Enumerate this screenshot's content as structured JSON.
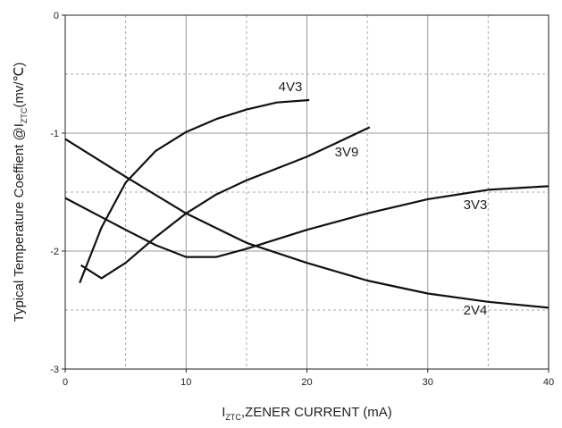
{
  "chart_data": {
    "type": "line",
    "xlabel": [
      "I",
      "ZTC",
      ",ZENER CURRENT (mA)"
    ],
    "ylabel": [
      "Typical Temperature Coeffient @I",
      "ZTC",
      "(mv/℃)"
    ],
    "xlim": [
      0,
      40
    ],
    "ylim": [
      -3,
      0
    ],
    "xticks": [
      0,
      10,
      20,
      30,
      40
    ],
    "yticks": [
      0,
      -1,
      -2,
      -3
    ],
    "xminor": [
      5,
      15,
      25,
      35
    ],
    "yminor": [
      -0.5,
      -1.5,
      -2.5
    ],
    "grid": true,
    "series": [
      {
        "name": "4V3",
        "color": "#111111",
        "x": [
          1.2,
          3,
          5,
          7.5,
          10,
          12.5,
          15,
          17.5,
          20.2
        ],
        "values": [
          -2.27,
          -1.8,
          -1.42,
          -1.15,
          -0.99,
          -0.88,
          -0.8,
          -0.74,
          -0.72
        ]
      },
      {
        "name": "3V9",
        "color": "#111111",
        "x": [
          1.3,
          3,
          5,
          7.5,
          10,
          12.5,
          15,
          17.5,
          20,
          22.5,
          25.2
        ],
        "values": [
          -2.12,
          -2.23,
          -2.1,
          -1.88,
          -1.68,
          -1.52,
          -1.4,
          -1.3,
          -1.2,
          -1.08,
          -0.95
        ]
      },
      {
        "name": "3V3",
        "color": "#111111",
        "x": [
          0,
          5,
          7.5,
          10,
          12.5,
          15,
          17.5,
          20,
          25,
          30,
          35,
          40
        ],
        "values": [
          -1.55,
          -1.82,
          -1.95,
          -2.05,
          -2.05,
          -1.98,
          -1.9,
          -1.82,
          -1.68,
          -1.56,
          -1.48,
          -1.45
        ]
      },
      {
        "name": "2V4",
        "color": "#111111",
        "x": [
          0,
          5,
          10,
          15,
          20,
          25,
          30,
          35,
          40
        ],
        "values": [
          -1.05,
          -1.37,
          -1.68,
          -1.93,
          -2.1,
          -2.25,
          -2.36,
          -2.43,
          -2.48
        ]
      }
    ]
  }
}
